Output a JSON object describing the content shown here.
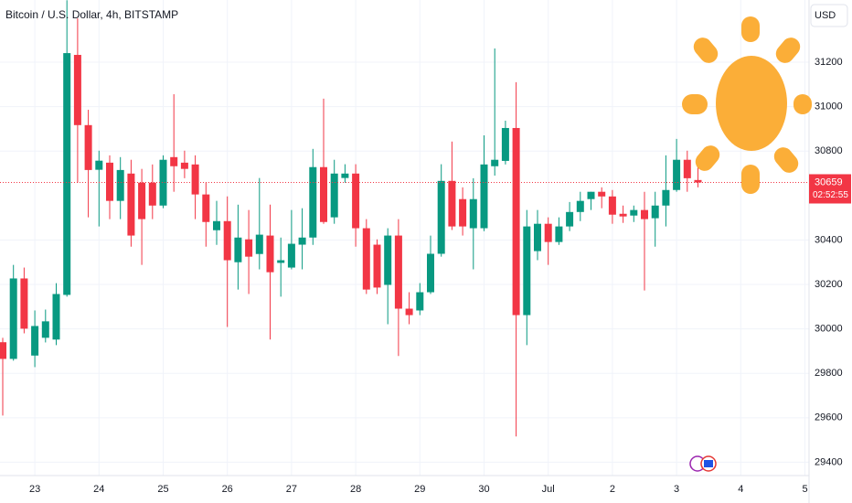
{
  "chart_data": {
    "type": "candlestick",
    "title": "Bitcoin / U.S. Dollar, 4h, BITSTAMP",
    "currency": "USD",
    "last_price": 30659,
    "countdown": "02:52:55",
    "up_color": "#089981",
    "down_color": "#f23645",
    "grid": true,
    "ylim": [
      29340,
      31480
    ],
    "yticks": [
      29400,
      29600,
      29800,
      30000,
      30200,
      30400,
      30800,
      31000,
      31200
    ],
    "categories": [
      null,
      null,
      null,
      "23",
      null,
      null,
      null,
      null,
      null,
      "24",
      null,
      null,
      null,
      null,
      null,
      "25",
      null,
      null,
      null,
      null,
      null,
      "26",
      null,
      null,
      null,
      null,
      null,
      "27",
      null,
      null,
      null,
      null,
      null,
      "28",
      null,
      null,
      null,
      null,
      null,
      "29",
      null,
      null,
      null,
      null,
      null,
      "30",
      null,
      null,
      null,
      null,
      null,
      "Jul",
      null,
      null,
      null,
      null,
      null,
      "2",
      null,
      null,
      null,
      null,
      null,
      "3",
      null,
      null,
      null,
      null,
      null,
      "4",
      null,
      null,
      null,
      null,
      null,
      "5"
    ],
    "open": [
      29940,
      29865,
      30227,
      29880,
      29960,
      29952,
      30153,
      31233,
      30917,
      30716,
      30748,
      30576,
      30699,
      30658,
      30658,
      30555,
      30773,
      30748,
      30740,
      30605,
      30444,
      30485,
      30300,
      30403,
      30337,
      30420,
      30297,
      30276,
      30379,
      30411,
      30728,
      30502,
      30679,
      30699,
      30453,
      30379,
      30198,
      30420,
      30091,
      30083,
      30165,
      30338,
      30666,
      30584,
      30453,
      30453,
      30732,
      30756,
      30904,
      30062,
      30350,
      30473,
      30391,
      30461,
      30526,
      30584,
      30617,
      30596,
      30518,
      30510,
      30535,
      30498,
      30555,
      30625,
      30761,
      30670,
      null,
      null,
      null,
      null,
      null,
      null,
      null,
      null,
      null,
      null
    ],
    "high": [
      29960,
      30288,
      30276,
      30083,
      30087,
      30206,
      31479,
      31397,
      30986,
      30802,
      30781,
      30773,
      30761,
      30720,
      30740,
      30781,
      31056,
      30802,
      30781,
      30658,
      30576,
      30596,
      30559,
      30535,
      30679,
      30559,
      30411,
      30535,
      30543,
      30810,
      31036,
      30761,
      30741,
      30741,
      30494,
      30403,
      30453,
      30494,
      30165,
      30206,
      30420,
      30741,
      30843,
      30637,
      30678,
      30871,
      31262,
      30937,
      31110,
      30535,
      30535,
      30502,
      30502,
      30571,
      30617,
      30617,
      30637,
      30625,
      30555,
      30555,
      30617,
      30617,
      30781,
      30855,
      30802,
      30741,
      null,
      null,
      null,
      null,
      null,
      null,
      null,
      null,
      null,
      null
    ],
    "low": [
      29610,
      29857,
      29980,
      29828,
      29939,
      29927,
      30145,
      30658,
      30502,
      30461,
      30494,
      30494,
      30370,
      30288,
      30494,
      30543,
      30617,
      30678,
      30494,
      30370,
      30378,
      30009,
      30177,
      30157,
      30268,
      29952,
      30145,
      30268,
      30268,
      30378,
      30473,
      30473,
      30658,
      30370,
      30157,
      30157,
      30021,
      29878,
      30021,
      30062,
      30157,
      30325,
      30445,
      30420,
      30268,
      30440,
      30690,
      30740,
      29516,
      29927,
      30309,
      30288,
      30378,
      30440,
      30485,
      30535,
      30543,
      30473,
      30477,
      30481,
      30173,
      30370,
      30461,
      30617,
      30617,
      30637,
      null,
      null,
      null,
      null,
      null,
      null,
      null,
      null,
      null,
      null
    ],
    "close": [
      29865,
      30227,
      30001,
      30013,
      30034,
      30157,
      31241,
      30917,
      30715,
      30757,
      30576,
      30715,
      30420,
      30494,
      30555,
      30761,
      30732,
      30720,
      30605,
      30481,
      30485,
      30309,
      30411,
      30325,
      30424,
      30255,
      30309,
      30383,
      30411,
      30728,
      30481,
      30699,
      30699,
      30453,
      30177,
      30186,
      30420,
      30091,
      30062,
      30165,
      30338,
      30666,
      30461,
      30461,
      30584,
      30740,
      30761,
      30904,
      30062,
      30461,
      30473,
      30391,
      30461,
      30526,
      30576,
      30617,
      30596,
      30514,
      30506,
      30535,
      30494,
      30555,
      30625,
      30761,
      30678,
      30659,
      null,
      null,
      null,
      null,
      null,
      null,
      null,
      null,
      null,
      null
    ]
  }
}
